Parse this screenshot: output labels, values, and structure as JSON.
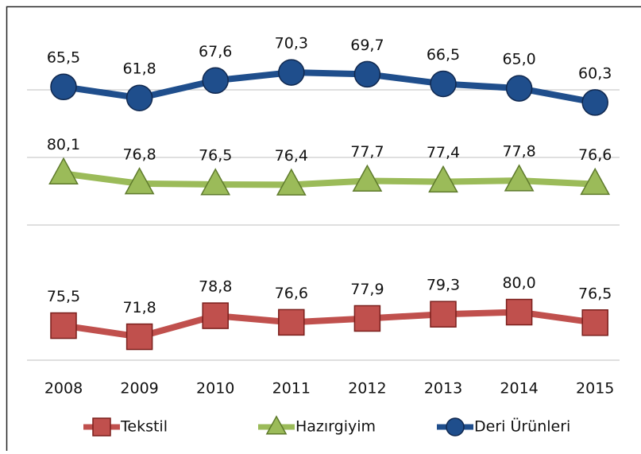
{
  "chart_data": {
    "type": "line",
    "categories": [
      "2008",
      "2009",
      "2010",
      "2011",
      "2012",
      "2013",
      "2014",
      "2015"
    ],
    "series": [
      {
        "name": "Tekstil",
        "color": "#c0504d",
        "marker": "square",
        "ylim": [
          64,
          109
        ],
        "values": [
          75.5,
          71.8,
          78.8,
          76.6,
          77.9,
          79.3,
          80.0,
          76.5
        ],
        "value_labels": [
          "75,5",
          "71,8",
          "78,8",
          "76,6",
          "77,9",
          "79,3",
          "80,0",
          "76,5"
        ]
      },
      {
        "name": "Hazırgiyim",
        "color": "#9bbb59",
        "marker": "triangle",
        "ylim": [
          63,
          108
        ],
        "values": [
          80.1,
          76.8,
          76.5,
          76.4,
          77.7,
          77.4,
          77.8,
          76.6
        ],
        "value_labels": [
          "80,1",
          "76,8",
          "76,5",
          "76,4",
          "77,7",
          "77,4",
          "77,8",
          "76,6"
        ]
      },
      {
        "name": "Deri Ürünleri",
        "color": "#1f4e8c",
        "marker": "circle",
        "ylim": [
          42,
          87
        ],
        "values": [
          65.5,
          61.8,
          67.6,
          70.3,
          69.7,
          66.5,
          65.0,
          60.3
        ],
        "value_labels": [
          "65,5",
          "61,8",
          "67,6",
          "70,3",
          "69,7",
          "66,5",
          "65,0",
          "60,3"
        ]
      }
    ],
    "legend": "bottom"
  }
}
